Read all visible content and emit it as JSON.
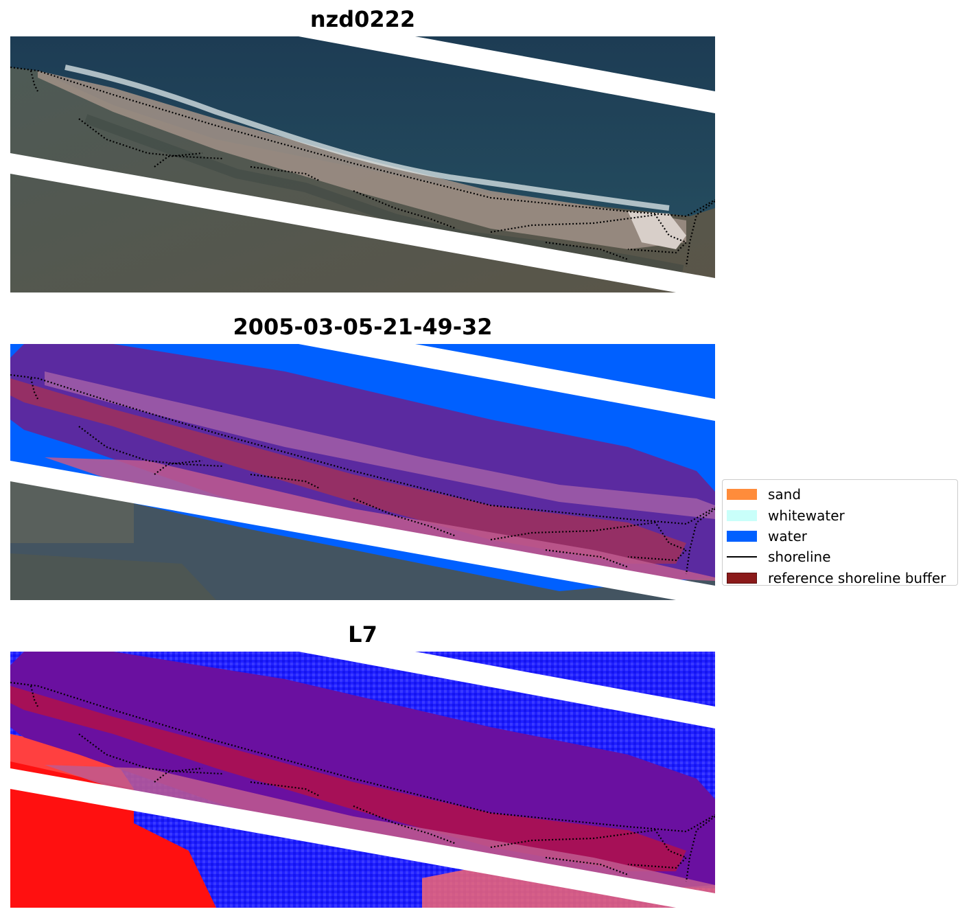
{
  "panels": [
    {
      "title": "nzd0222"
    },
    {
      "title": "2005-03-05-21-49-32"
    },
    {
      "title": "L7"
    }
  ],
  "legend": {
    "items": [
      {
        "label": "sand",
        "color": "#ff8c3b",
        "kind": "patch"
      },
      {
        "label": "whitewater",
        "color": "#c9fffa",
        "kind": "patch"
      },
      {
        "label": "water",
        "color": "#0060ff",
        "kind": "patch"
      },
      {
        "label": "shoreline",
        "color": "#000000",
        "kind": "line"
      },
      {
        "label": "reference shoreline buffer",
        "color": "#8b1a1a",
        "kind": "patch-outlined"
      }
    ]
  },
  "colors": {
    "ocean_rgb": "#1f4158",
    "land_rgb": "#4a5350",
    "beach_rgb": "#a79a8f",
    "surf": "#dfe8ea",
    "water_class": "#0060ff",
    "buffer_overlay": "#7a0030",
    "buffer_water_overlay": "#5b2aa0",
    "mndwi_water": "#2020ff",
    "mndwi_land": "#ff1010",
    "nodata_stripe": "#ffffff"
  }
}
